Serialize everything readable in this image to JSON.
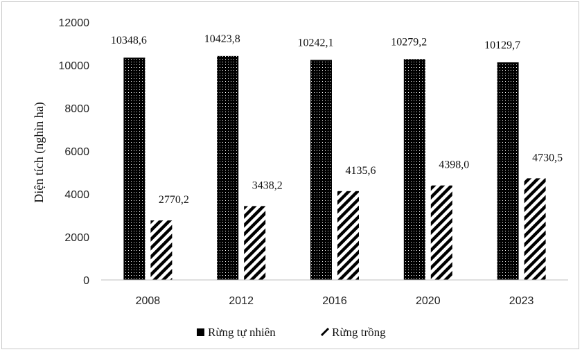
{
  "chart_data": {
    "type": "bar",
    "categories": [
      "2008",
      "2012",
      "2016",
      "2020",
      "2023"
    ],
    "series": [
      {
        "name": "Rừng tự nhiên",
        "values": [
          10348.6,
          10423.8,
          10242.1,
          10279.2,
          10129.7
        ],
        "labels": [
          "10348,6",
          "10423,8",
          "10242,1",
          "10279,2",
          "10129,7"
        ],
        "pattern": "dotted-black"
      },
      {
        "name": "Rừng trồng",
        "values": [
          2770.2,
          3438.2,
          4135.6,
          4398.0,
          4730.5
        ],
        "labels": [
          "2770,2",
          "3438,2",
          "4135,6",
          "4398,0",
          "4730,5"
        ],
        "pattern": "diagonal-hatch"
      }
    ],
    "ylabel": "Diện tích (nghìn ha)",
    "xlabel": "",
    "ylim": [
      0,
      12000
    ],
    "yticks": [
      "0",
      "2000",
      "4000",
      "6000",
      "8000",
      "10000",
      "12000"
    ],
    "grid": false,
    "legend_position": "bottom"
  }
}
